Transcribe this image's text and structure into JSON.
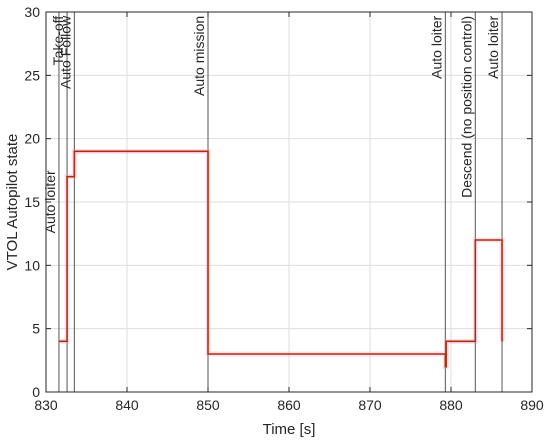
{
  "chart_data": {
    "type": "line",
    "title": "",
    "xlabel": "Time [s]",
    "ylabel": "VTOL Autopilot state",
    "xlim": [
      830,
      890
    ],
    "ylim": [
      0,
      30
    ],
    "xticks": [
      830,
      840,
      850,
      860,
      870,
      880,
      890
    ],
    "yticks": [
      0,
      5,
      10,
      15,
      20,
      25,
      30
    ],
    "grid": true,
    "series": [
      {
        "color": "#a83208",
        "halo_color": "#ff9ad2",
        "step": true,
        "points": [
          [
            831.6,
            4
          ],
          [
            832.6,
            4
          ],
          [
            832.6,
            17
          ],
          [
            833.5,
            17
          ],
          [
            833.5,
            19
          ],
          [
            850.0,
            19
          ],
          [
            850.0,
            3
          ],
          [
            879.3,
            3
          ],
          [
            879.3,
            2
          ],
          [
            879.4,
            2
          ],
          [
            879.4,
            4
          ],
          [
            883.0,
            4
          ],
          [
            883.0,
            12
          ],
          [
            886.3,
            12
          ],
          [
            886.3,
            4
          ]
        ]
      }
    ],
    "events": [
      {
        "x": 831.6,
        "label": "Auto loiter"
      },
      {
        "x": 832.6,
        "label": "Take-off"
      },
      {
        "x": 833.5,
        "label": "Auto Follow"
      },
      {
        "x": 850.0,
        "label": "Auto mission"
      },
      {
        "x": 879.3,
        "label": "Auto loiter"
      },
      {
        "x": 883.0,
        "label": "Descend (no position control)"
      },
      {
        "x": 886.3,
        "label": "Auto loiter"
      }
    ],
    "event_label_tops": [
      17.5,
      29.7,
      29.7,
      29.7,
      29.7,
      29.7,
      29.7
    ],
    "colors": {
      "axis": "#262626",
      "grid": "#dedede",
      "event_line": "#555555"
    }
  }
}
